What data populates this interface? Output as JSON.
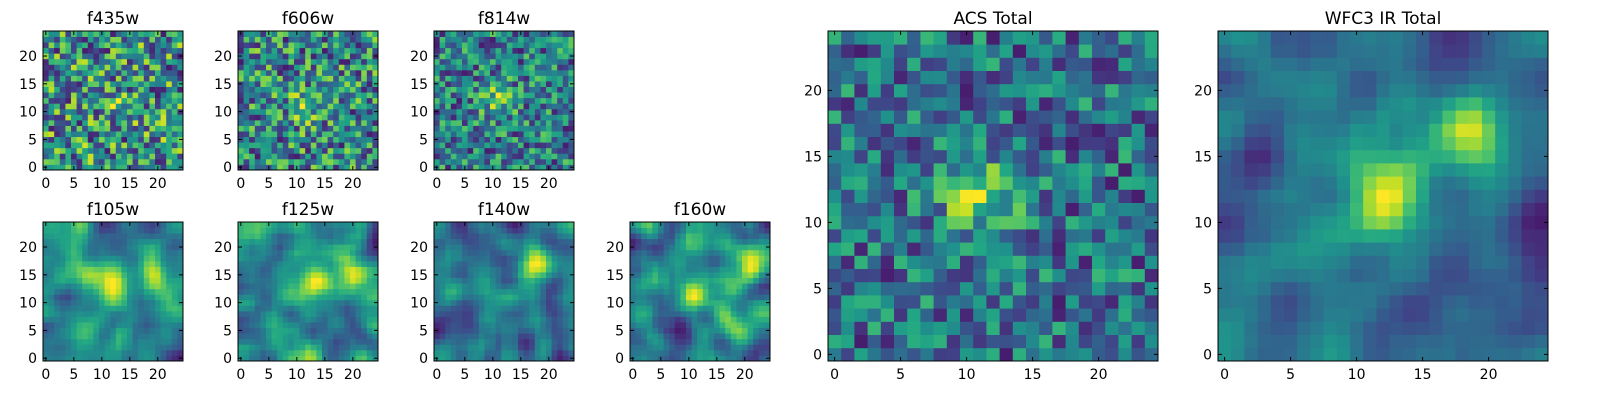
{
  "chart_data": [
    {
      "type": "heatmap",
      "title": "f435w",
      "xlim": [
        0,
        24
      ],
      "ylim": [
        0,
        24
      ],
      "xticks": [
        "0",
        "5",
        "10",
        "15",
        "20"
      ],
      "yticks": [
        "0",
        "5",
        "10",
        "15",
        "20"
      ],
      "colormap": "viridis",
      "description": "noise-dominated image stamp, no visible source",
      "peak": [
        12,
        12
      ],
      "values": []
    },
    {
      "type": "heatmap",
      "title": "f606w",
      "xlim": [
        0,
        24
      ],
      "ylim": [
        0,
        24
      ],
      "xticks": [
        "0",
        "5",
        "10",
        "15",
        "20"
      ],
      "yticks": [
        "0",
        "5",
        "10",
        "15",
        "20"
      ],
      "colormap": "viridis",
      "description": "noisy stamp, faint source near center",
      "peak": [
        12,
        11
      ],
      "values": []
    },
    {
      "type": "heatmap",
      "title": "f814w",
      "xlim": [
        0,
        24
      ],
      "ylim": [
        0,
        24
      ],
      "xticks": [
        "0",
        "5",
        "10",
        "15",
        "20"
      ],
      "yticks": [
        "0",
        "5",
        "10",
        "15",
        "20"
      ],
      "colormap": "viridis",
      "description": "noisy stamp, faint source near center",
      "peak": [
        11,
        12
      ],
      "values": []
    },
    {
      "type": "heatmap",
      "title": "f105w",
      "xlim": [
        0,
        24
      ],
      "ylim": [
        0,
        24
      ],
      "xticks": [
        "0",
        "5",
        "10",
        "15",
        "20"
      ],
      "yticks": [
        "0",
        "5",
        "10",
        "15",
        "20"
      ],
      "colormap": "viridis",
      "description": "smooth stamp, source near center and upper right",
      "peak": [
        12,
        13
      ],
      "values": []
    },
    {
      "type": "heatmap",
      "title": "f125w",
      "xlim": [
        0,
        24
      ],
      "ylim": [
        0,
        24
      ],
      "xticks": [
        "0",
        "5",
        "10",
        "15",
        "20"
      ],
      "yticks": [
        "0",
        "5",
        "10",
        "15",
        "20"
      ],
      "colormap": "viridis",
      "description": "smooth stamp, diffuse bright region",
      "peak": [
        14,
        14
      ],
      "values": []
    },
    {
      "type": "heatmap",
      "title": "f140w",
      "xlim": [
        0,
        24
      ],
      "ylim": [
        0,
        24
      ],
      "xticks": [
        "0",
        "5",
        "10",
        "15",
        "20"
      ],
      "yticks": [
        "0",
        "5",
        "10",
        "15",
        "20"
      ],
      "colormap": "viridis",
      "description": "smooth stamp, bright ridge upper right",
      "peak": [
        17,
        17
      ],
      "values": []
    },
    {
      "type": "heatmap",
      "title": "f160w",
      "xlim": [
        0,
        24
      ],
      "ylim": [
        0,
        24
      ],
      "xticks": [
        "0",
        "5",
        "10",
        "15",
        "20"
      ],
      "yticks": [
        "0",
        "5",
        "10",
        "15",
        "20"
      ],
      "colormap": "viridis",
      "description": "smooth stamp, bright blobs center and upper right",
      "peak": [
        12,
        12
      ],
      "values": []
    },
    {
      "type": "heatmap",
      "title": "ACS Total",
      "xlim": [
        0,
        24
      ],
      "ylim": [
        0,
        24
      ],
      "xticks": [
        "0",
        "5",
        "10",
        "15",
        "20"
      ],
      "yticks": [
        "0",
        "5",
        "10",
        "15",
        "20"
      ],
      "colormap": "viridis",
      "description": "blocky noisy stamp, source near center",
      "peak": [
        11,
        12
      ],
      "values": []
    },
    {
      "type": "heatmap",
      "title": "WFC3 IR Total",
      "xlim": [
        0,
        24
      ],
      "ylim": [
        0,
        24
      ],
      "xticks": [
        "0",
        "5",
        "10",
        "15",
        "20"
      ],
      "yticks": [
        "0",
        "5",
        "10",
        "15",
        "20"
      ],
      "colormap": "viridis",
      "description": "smooth stamp, source centered at (12,12) with secondary at (19,17)",
      "peak": [
        12,
        12
      ],
      "values": []
    }
  ]
}
